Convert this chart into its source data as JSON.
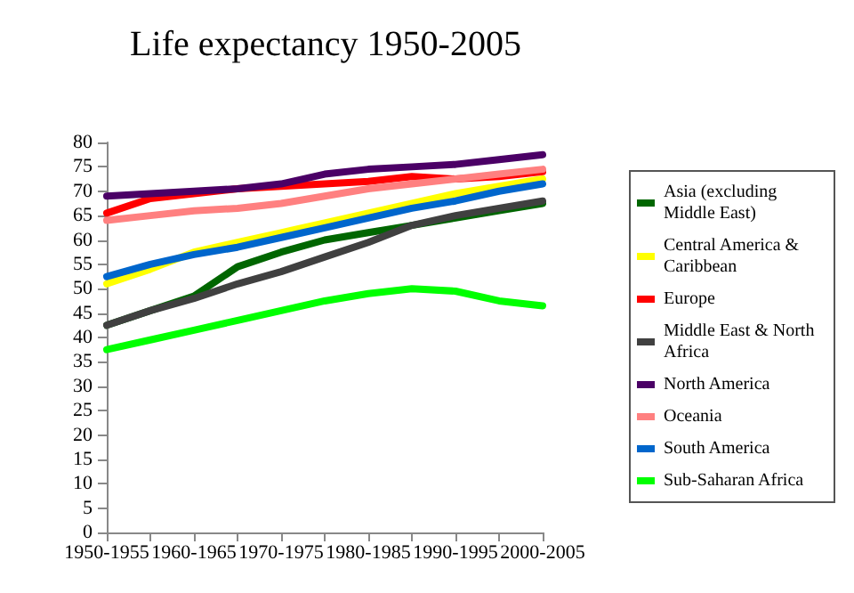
{
  "chart_data": {
    "type": "line",
    "title": "Life expectancy 1950-2005",
    "categories": [
      "1950-1955",
      null,
      "1960-1965",
      null,
      "1970-1975",
      null,
      "1980-1985",
      null,
      "1990-1995",
      null,
      "2000-2005"
    ],
    "series": [
      {
        "name": "Asia (excluding Middle East)",
        "color": "#006600",
        "values": [
          42.5,
          45.5,
          48.5,
          54.5,
          57.5,
          60,
          61.5,
          63,
          64.5,
          66,
          67.5
        ]
      },
      {
        "name": "Central America & Caribbean",
        "color": "#ffff00",
        "values": [
          51,
          54,
          57.5,
          59.5,
          61.5,
          63.5,
          65.5,
          67.5,
          69.5,
          71,
          72.5
        ]
      },
      {
        "name": "Europe",
        "color": "#ff0000",
        "values": [
          65.5,
          68.5,
          69.5,
          70.5,
          71,
          71.5,
          72,
          73,
          72.5,
          73,
          74
        ]
      },
      {
        "name": "Middle East & North Africa",
        "color": "#404040",
        "values": [
          42.5,
          45.5,
          48,
          51,
          53.5,
          56.5,
          59.5,
          63,
          65,
          66.5,
          68
        ]
      },
      {
        "name": "North America",
        "color": "#4b0066",
        "values": [
          69,
          69.5,
          70,
          70.5,
          71.5,
          73.5,
          74.5,
          75,
          75.5,
          76.5,
          77.5
        ]
      },
      {
        "name": "Oceania",
        "color": "#ff8080",
        "values": [
          64,
          65,
          66,
          66.5,
          67.5,
          69,
          70.5,
          71.5,
          72.5,
          73.5,
          74.5
        ]
      },
      {
        "name": "South America",
        "color": "#0066cc",
        "values": [
          52.5,
          55,
          57,
          58.5,
          60.5,
          62.5,
          64.5,
          66.5,
          68,
          70,
          71.5
        ]
      },
      {
        "name": "Sub-Saharan Africa",
        "color": "#00ff00",
        "values": [
          37.5,
          39.5,
          41.5,
          43.5,
          45.5,
          47.5,
          49,
          50,
          49.5,
          47.5,
          46.5
        ]
      }
    ],
    "ylim": [
      0,
      80
    ],
    "yticks": [
      0,
      5,
      10,
      15,
      20,
      25,
      30,
      35,
      40,
      45,
      50,
      55,
      60,
      65,
      70,
      75,
      80
    ],
    "grid": false,
    "legend": "right",
    "marker": "none",
    "line_style": "solid"
  }
}
